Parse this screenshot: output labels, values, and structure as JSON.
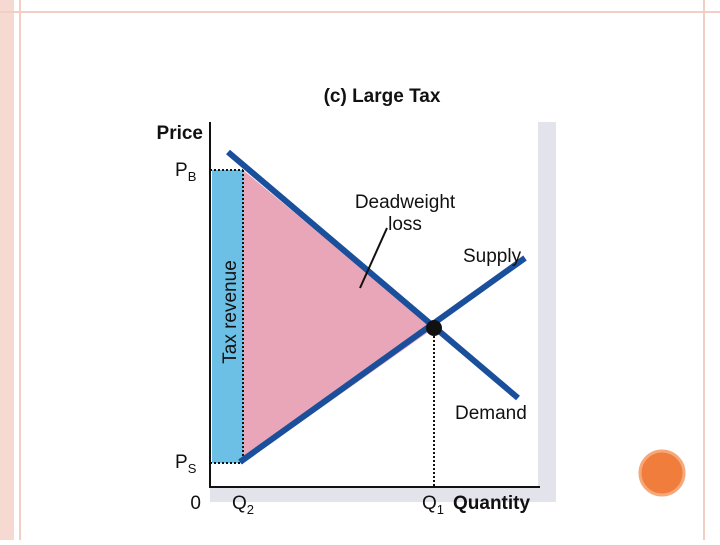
{
  "title": "(c) Large Tax",
  "axes": {
    "y_label": "Price",
    "x_label": "Quantity",
    "origin": "0"
  },
  "price_labels": {
    "buyers": {
      "main": "P",
      "sub": "B"
    },
    "sellers": {
      "main": "P",
      "sub": "S"
    }
  },
  "quantity_labels": {
    "with_tax": {
      "main": "Q",
      "sub": "2"
    },
    "without_tax": {
      "main": "Q",
      "sub": "1"
    }
  },
  "areas": {
    "tax_revenue": "Tax revenue",
    "deadweight_loss": "Deadweight loss"
  },
  "curves": {
    "supply": "Supply",
    "demand": "Demand"
  }
}
